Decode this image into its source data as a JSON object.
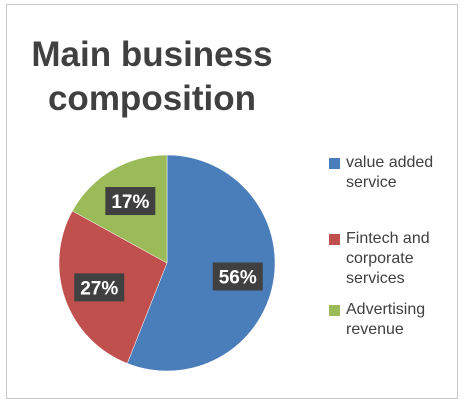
{
  "chart_data": {
    "type": "pie",
    "title": "Main business composition",
    "categories": [
      "value added service",
      "Fintech and corporate services",
      "Advertising revenue"
    ],
    "values": [
      56,
      27,
      17
    ],
    "labels": [
      "56%",
      "27%",
      "17%"
    ],
    "colors": [
      "#4a7ebb",
      "#c0504d",
      "#9bbb59"
    ],
    "legend_position": "right"
  }
}
